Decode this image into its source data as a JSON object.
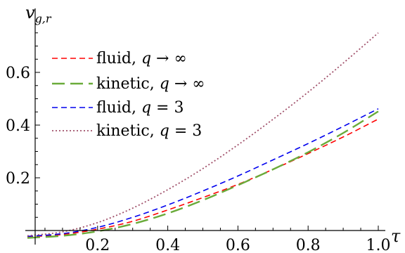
{
  "chart_data": {
    "type": "line",
    "xlabel": "τ",
    "ylabel": "v",
    "ylabel_sub": "g,r",
    "xlim": [
      0.0,
      1.0
    ],
    "ylim": [
      -0.03,
      0.78
    ],
    "x_ticks": [
      0.2,
      0.4,
      0.6,
      0.8,
      1.0
    ],
    "x_tick_labels": [
      "0.2",
      "0.4",
      "0.6",
      "0.8",
      "1.0"
    ],
    "y_ticks": [
      0.2,
      0.4,
      0.6
    ],
    "y_tick_labels": [
      "0.2",
      "0.4",
      "0.6"
    ],
    "legend_position": "top-left",
    "series": [
      {
        "name": "fluid, q → ∞",
        "name_parts": [
          "fluid, ",
          "q",
          " → ∞"
        ],
        "color": "#ff0000",
        "dash": "8,5",
        "width": 1.6,
        "x": [
          0.0,
          0.1,
          0.2,
          0.3,
          0.4,
          0.5,
          0.6,
          0.7,
          0.8,
          0.9,
          1.0
        ],
        "y": [
          -0.024,
          -0.015,
          0.005,
          0.035,
          0.078,
          0.125,
          0.175,
          0.232,
          0.292,
          0.355,
          0.423
        ]
      },
      {
        "name": "kinetic, q → ∞",
        "name_parts": [
          "kinetic, ",
          "q",
          " → ∞"
        ],
        "color": "#6aab3a",
        "dash": "18,8",
        "width": 2.4,
        "x": [
          0.0,
          0.1,
          0.2,
          0.3,
          0.4,
          0.5,
          0.6,
          0.7,
          0.8,
          0.9,
          1.0
        ],
        "y": [
          -0.028,
          -0.02,
          -0.003,
          0.025,
          0.065,
          0.115,
          0.172,
          0.232,
          0.297,
          0.37,
          0.452
        ]
      },
      {
        "name": "fluid, q = 3",
        "name_parts": [
          "fluid, ",
          "q",
          " = 3"
        ],
        "color": "#0000ee",
        "dash": "8,5",
        "width": 1.6,
        "x": [
          0.0,
          0.1,
          0.2,
          0.3,
          0.4,
          0.5,
          0.6,
          0.7,
          0.8,
          0.9,
          1.0
        ],
        "y": [
          -0.022,
          -0.012,
          0.012,
          0.05,
          0.097,
          0.15,
          0.207,
          0.268,
          0.33,
          0.395,
          0.462
        ]
      },
      {
        "name": "kinetic, q = 3",
        "name_parts": [
          "kinetic, ",
          "q",
          " = 3"
        ],
        "color": "#a0506a",
        "dash": "2,3",
        "width": 1.8,
        "x": [
          0.0,
          0.1,
          0.2,
          0.3,
          0.4,
          0.5,
          0.6,
          0.7,
          0.8,
          0.9,
          1.0
        ],
        "y": [
          -0.02,
          -0.005,
          0.03,
          0.085,
          0.155,
          0.235,
          0.325,
          0.422,
          0.525,
          0.635,
          0.75
        ]
      }
    ]
  }
}
